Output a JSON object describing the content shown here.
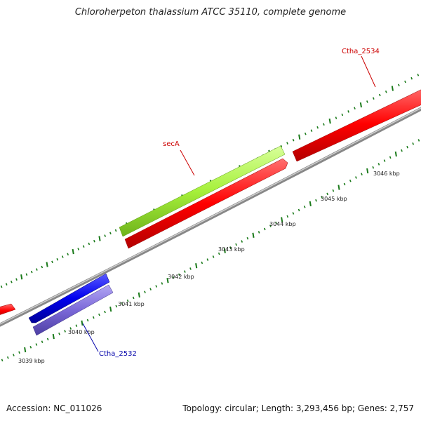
{
  "title": "Chloroherpeton thalassium ATCC 35110, complete genome",
  "footer": {
    "accession": "Accession: NC_011026",
    "summary": "Topology: circular; Length: 3,293,456 bp; Genes: 2,757"
  },
  "colors": {
    "forward_cds": "#ff1a1a",
    "reverse_cds": "#0000ee",
    "highlight_cds": "#a6f03a",
    "reverse_rna": "#7b68d8",
    "backbone": "#888888",
    "ticks": "#1a7a1a",
    "forward_label": "#cc0000",
    "reverse_label": "#0000aa"
  },
  "scale_labels": [
    "3039 kbp",
    "3040 kbp",
    "3041 kbp",
    "3042 kbp",
    "3043 kbp",
    "3044 kbp",
    "3045 kbp",
    "3046 kbp"
  ],
  "gene_labels": {
    "secA": "secA",
    "ctha_2534": "Ctha_2534",
    "ctha_2532": "Ctha_2532"
  }
}
